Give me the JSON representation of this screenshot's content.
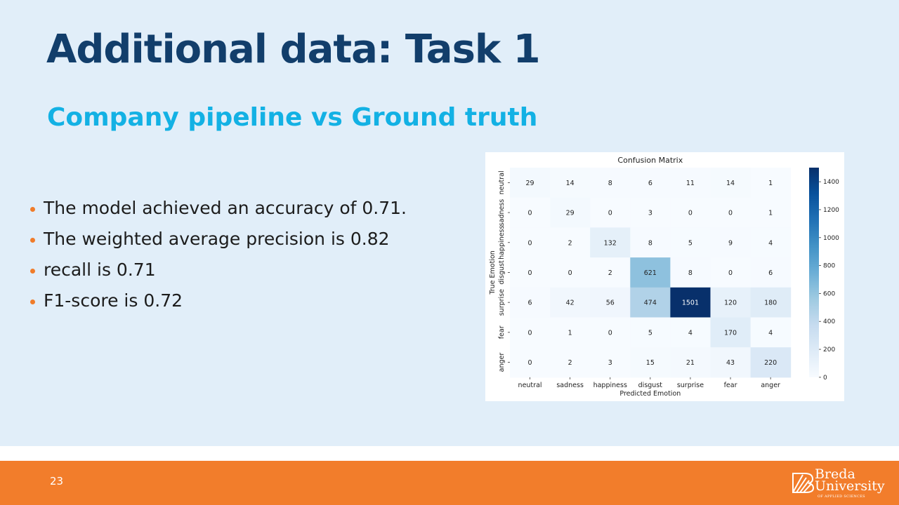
{
  "slide": {
    "title": "Additional data: Task 1",
    "subtitle": "Company pipeline vs Ground truth",
    "bullets": [
      "The model achieved an accuracy of 0.71.",
      "The weighted average precision is 0.82",
      "recall is 0.71",
      "F1-score is 0.72"
    ],
    "page_number": "23",
    "logo": {
      "line1": "Breda",
      "line2": "University",
      "line3": "OF APPLIED SCIENCES"
    }
  },
  "colors": {
    "title": "#123e6b",
    "subtitle": "#13b1e4",
    "bullet": "#f07c2a",
    "footer": "#f27d2b",
    "background": "#e1eef9"
  },
  "chart_data": {
    "type": "heatmap",
    "title": "Confusion Matrix",
    "xlabel": "Predicted Emotion",
    "ylabel": "True Emotion",
    "x_categories": [
      "neutral",
      "sadness",
      "happiness",
      "disgust",
      "surprise",
      "fear",
      "anger"
    ],
    "y_categories": [
      "neutral",
      "sadness",
      "happiness",
      "disgust",
      "surprise",
      "fear",
      "anger"
    ],
    "values": [
      [
        29,
        14,
        8,
        6,
        11,
        14,
        1
      ],
      [
        0,
        29,
        0,
        3,
        0,
        0,
        1
      ],
      [
        0,
        2,
        132,
        8,
        5,
        9,
        4
      ],
      [
        0,
        0,
        2,
        621,
        8,
        0,
        6
      ],
      [
        6,
        42,
        56,
        474,
        1501,
        120,
        180
      ],
      [
        0,
        1,
        0,
        5,
        4,
        170,
        4
      ],
      [
        0,
        2,
        3,
        15,
        21,
        43,
        220
      ]
    ],
    "colorbar": {
      "min": 0,
      "max": 1501,
      "ticks": [
        0,
        200,
        400,
        600,
        800,
        1000,
        1200,
        1400
      ]
    },
    "colormap": "Blues"
  }
}
